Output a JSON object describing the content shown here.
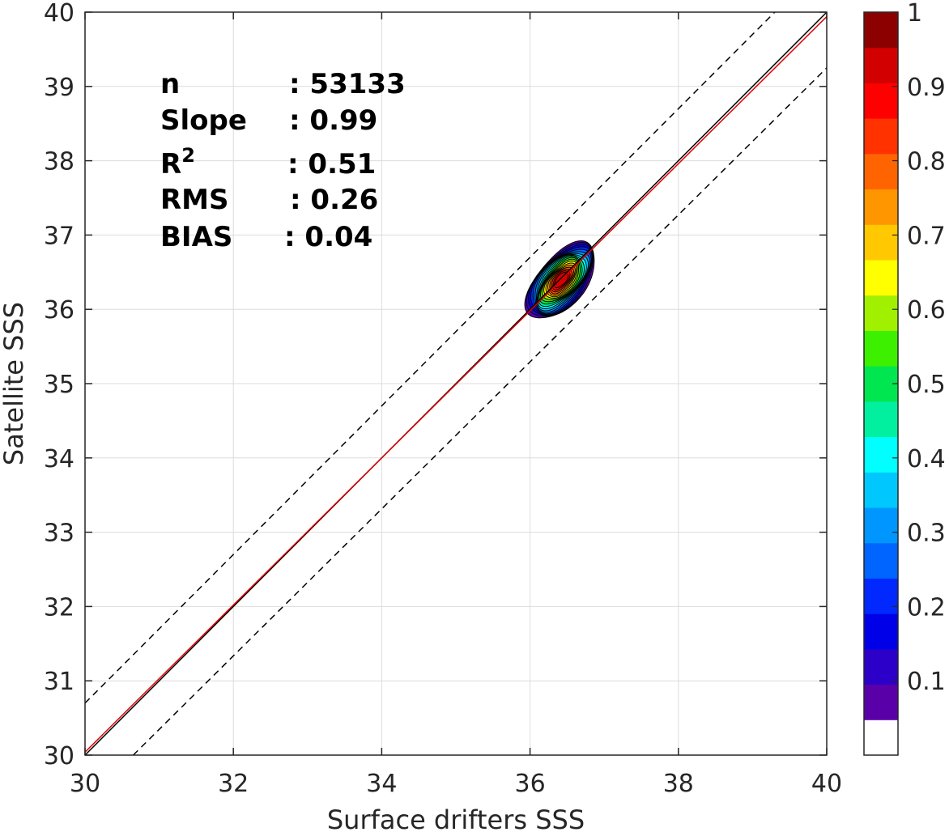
{
  "chart_data": {
    "type": "contour",
    "title": "",
    "xlabel": "Surface drifters SSS",
    "ylabel": "Satellite SSS",
    "xlim": [
      30,
      40
    ],
    "ylim": [
      30,
      40
    ],
    "xticks": [
      "30",
      "32",
      "34",
      "36",
      "38",
      "40"
    ],
    "yticks": [
      "30",
      "31",
      "32",
      "33",
      "34",
      "35",
      "36",
      "37",
      "38",
      "39",
      "40"
    ],
    "grid": true,
    "stats": [
      {
        "label": "n",
        "value": ": 53133"
      },
      {
        "label": "Slope",
        "value": ": 0.99"
      },
      {
        "label": "R",
        "sup": "2",
        "value": ": 0.51"
      },
      {
        "label": "RMS",
        "value": ": 0.26"
      },
      {
        "label": "BIAS",
        "value": ": 0.04"
      }
    ],
    "lines": [
      {
        "style": "solid",
        "color": "#000000",
        "x": [
          30,
          40
        ],
        "y": [
          30,
          40
        ]
      },
      {
        "style": "solid",
        "color": "#e00000",
        "x": [
          30,
          40
        ],
        "y": [
          30.04,
          39.94
        ]
      },
      {
        "style": "dashed",
        "color": "#000000",
        "x": [
          30,
          39.3
        ],
        "y": [
          30.7,
          40
        ]
      },
      {
        "style": "dashed",
        "color": "#000000",
        "x": [
          30.65,
          40
        ],
        "y": [
          30,
          39.25
        ]
      }
    ],
    "density_peak": {
      "x": 36.42,
      "y": 36.4,
      "value": 1
    },
    "contour_levels": [
      0.05,
      0.1,
      0.15,
      0.2,
      0.25,
      0.3,
      0.35,
      0.4,
      0.45,
      0.5,
      0.55,
      0.6,
      0.65,
      0.7,
      0.75,
      0.8,
      0.85,
      0.9,
      0.95
    ],
    "contour_shape": {
      "outer_center": [
        36.42,
        36.38
      ],
      "outer_a": 0.62,
      "outer_b": 0.32,
      "angle_deg": 50,
      "fill_fraction": 0.88
    },
    "colorbar": {
      "limits": [
        0,
        1
      ],
      "ticks": [
        "0.1",
        "0.2",
        "0.3",
        "0.4",
        "0.5",
        "0.6",
        "0.7",
        "0.8",
        "0.9",
        "1"
      ],
      "tick_values": [
        0.1,
        0.2,
        0.3,
        0.4,
        0.5,
        0.6,
        0.7,
        0.8,
        0.9,
        1
      ],
      "colors": [
        "#ffffff",
        "#5a00a8",
        "#2c00c8",
        "#0000e8",
        "#0028ff",
        "#0064ff",
        "#0096ff",
        "#00c8ff",
        "#00ffff",
        "#00f0a0",
        "#00e650",
        "#3cf000",
        "#a0f000",
        "#ffff00",
        "#ffc800",
        "#ff9600",
        "#ff6400",
        "#ff3200",
        "#ff0000",
        "#d20000",
        "#8c0000"
      ]
    }
  }
}
